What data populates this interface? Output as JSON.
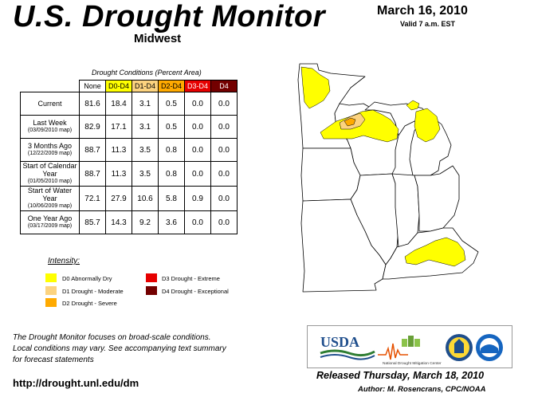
{
  "header": {
    "title": "U.S. Drought Monitor",
    "region": "Midwest",
    "date": "March 16, 2010",
    "valid": "Valid 7 a.m. EST"
  },
  "table": {
    "caption": "Drought Conditions (Percent Area)",
    "columns": [
      {
        "label": "None",
        "color": "#ffffff"
      },
      {
        "label": "D0-D4",
        "color": "#ffff00"
      },
      {
        "label": "D1-D4",
        "color": "#fcd37f"
      },
      {
        "label": "D2-D4",
        "color": "#ffaa00"
      },
      {
        "label": "D3-D4",
        "color": "#e60000"
      },
      {
        "label": "D4",
        "color": "#730000"
      }
    ],
    "rows": [
      {
        "label": "Current",
        "sub": "",
        "values": [
          "81.6",
          "18.4",
          "3.1",
          "0.5",
          "0.0",
          "0.0"
        ]
      },
      {
        "label": "Last Week",
        "sub": "(03/09/2010 map)",
        "values": [
          "82.9",
          "17.1",
          "3.1",
          "0.5",
          "0.0",
          "0.0"
        ]
      },
      {
        "label": "3 Months Ago",
        "sub": "(12/22/2009 map)",
        "values": [
          "88.7",
          "11.3",
          "3.5",
          "0.8",
          "0.0",
          "0.0"
        ]
      },
      {
        "label": "Start of Calendar Year",
        "sub": "(01/05/2010 map)",
        "values": [
          "88.7",
          "11.3",
          "3.5",
          "0.8",
          "0.0",
          "0.0"
        ]
      },
      {
        "label": "Start of Water Year",
        "sub": "(10/06/2009 map)",
        "values": [
          "72.1",
          "27.9",
          "10.6",
          "5.8",
          "0.9",
          "0.0"
        ]
      },
      {
        "label": "One Year Ago",
        "sub": "(03/17/2009 map)",
        "values": [
          "85.7",
          "14.3",
          "9.2",
          "3.6",
          "0.0",
          "0.0"
        ]
      }
    ]
  },
  "legend": {
    "title": "Intensity:",
    "items": [
      {
        "label": "D0 Abnormally Dry",
        "color": "#ffff00"
      },
      {
        "label": "D1 Drought - Moderate",
        "color": "#fcd37f"
      },
      {
        "label": "D2 Drought - Severe",
        "color": "#ffaa00"
      },
      {
        "label": "D3 Drought - Extreme",
        "color": "#e60000"
      },
      {
        "label": "D4 Drought - Exceptional",
        "color": "#730000"
      }
    ]
  },
  "footer": {
    "note_1": "The Drought Monitor focuses on broad-scale conditions.",
    "note_2": "Local conditions may vary. See accompanying text summary",
    "note_3": "for forecast statements",
    "url": "http://drought.unl.edu/dm",
    "released": "Released Thursday, March 18, 2010",
    "author": "Author: M. Rosencrans, CPC/NOAA"
  },
  "logos": {
    "usda": "USDA",
    "ndmc": "National Drought Mitigation Center"
  }
}
